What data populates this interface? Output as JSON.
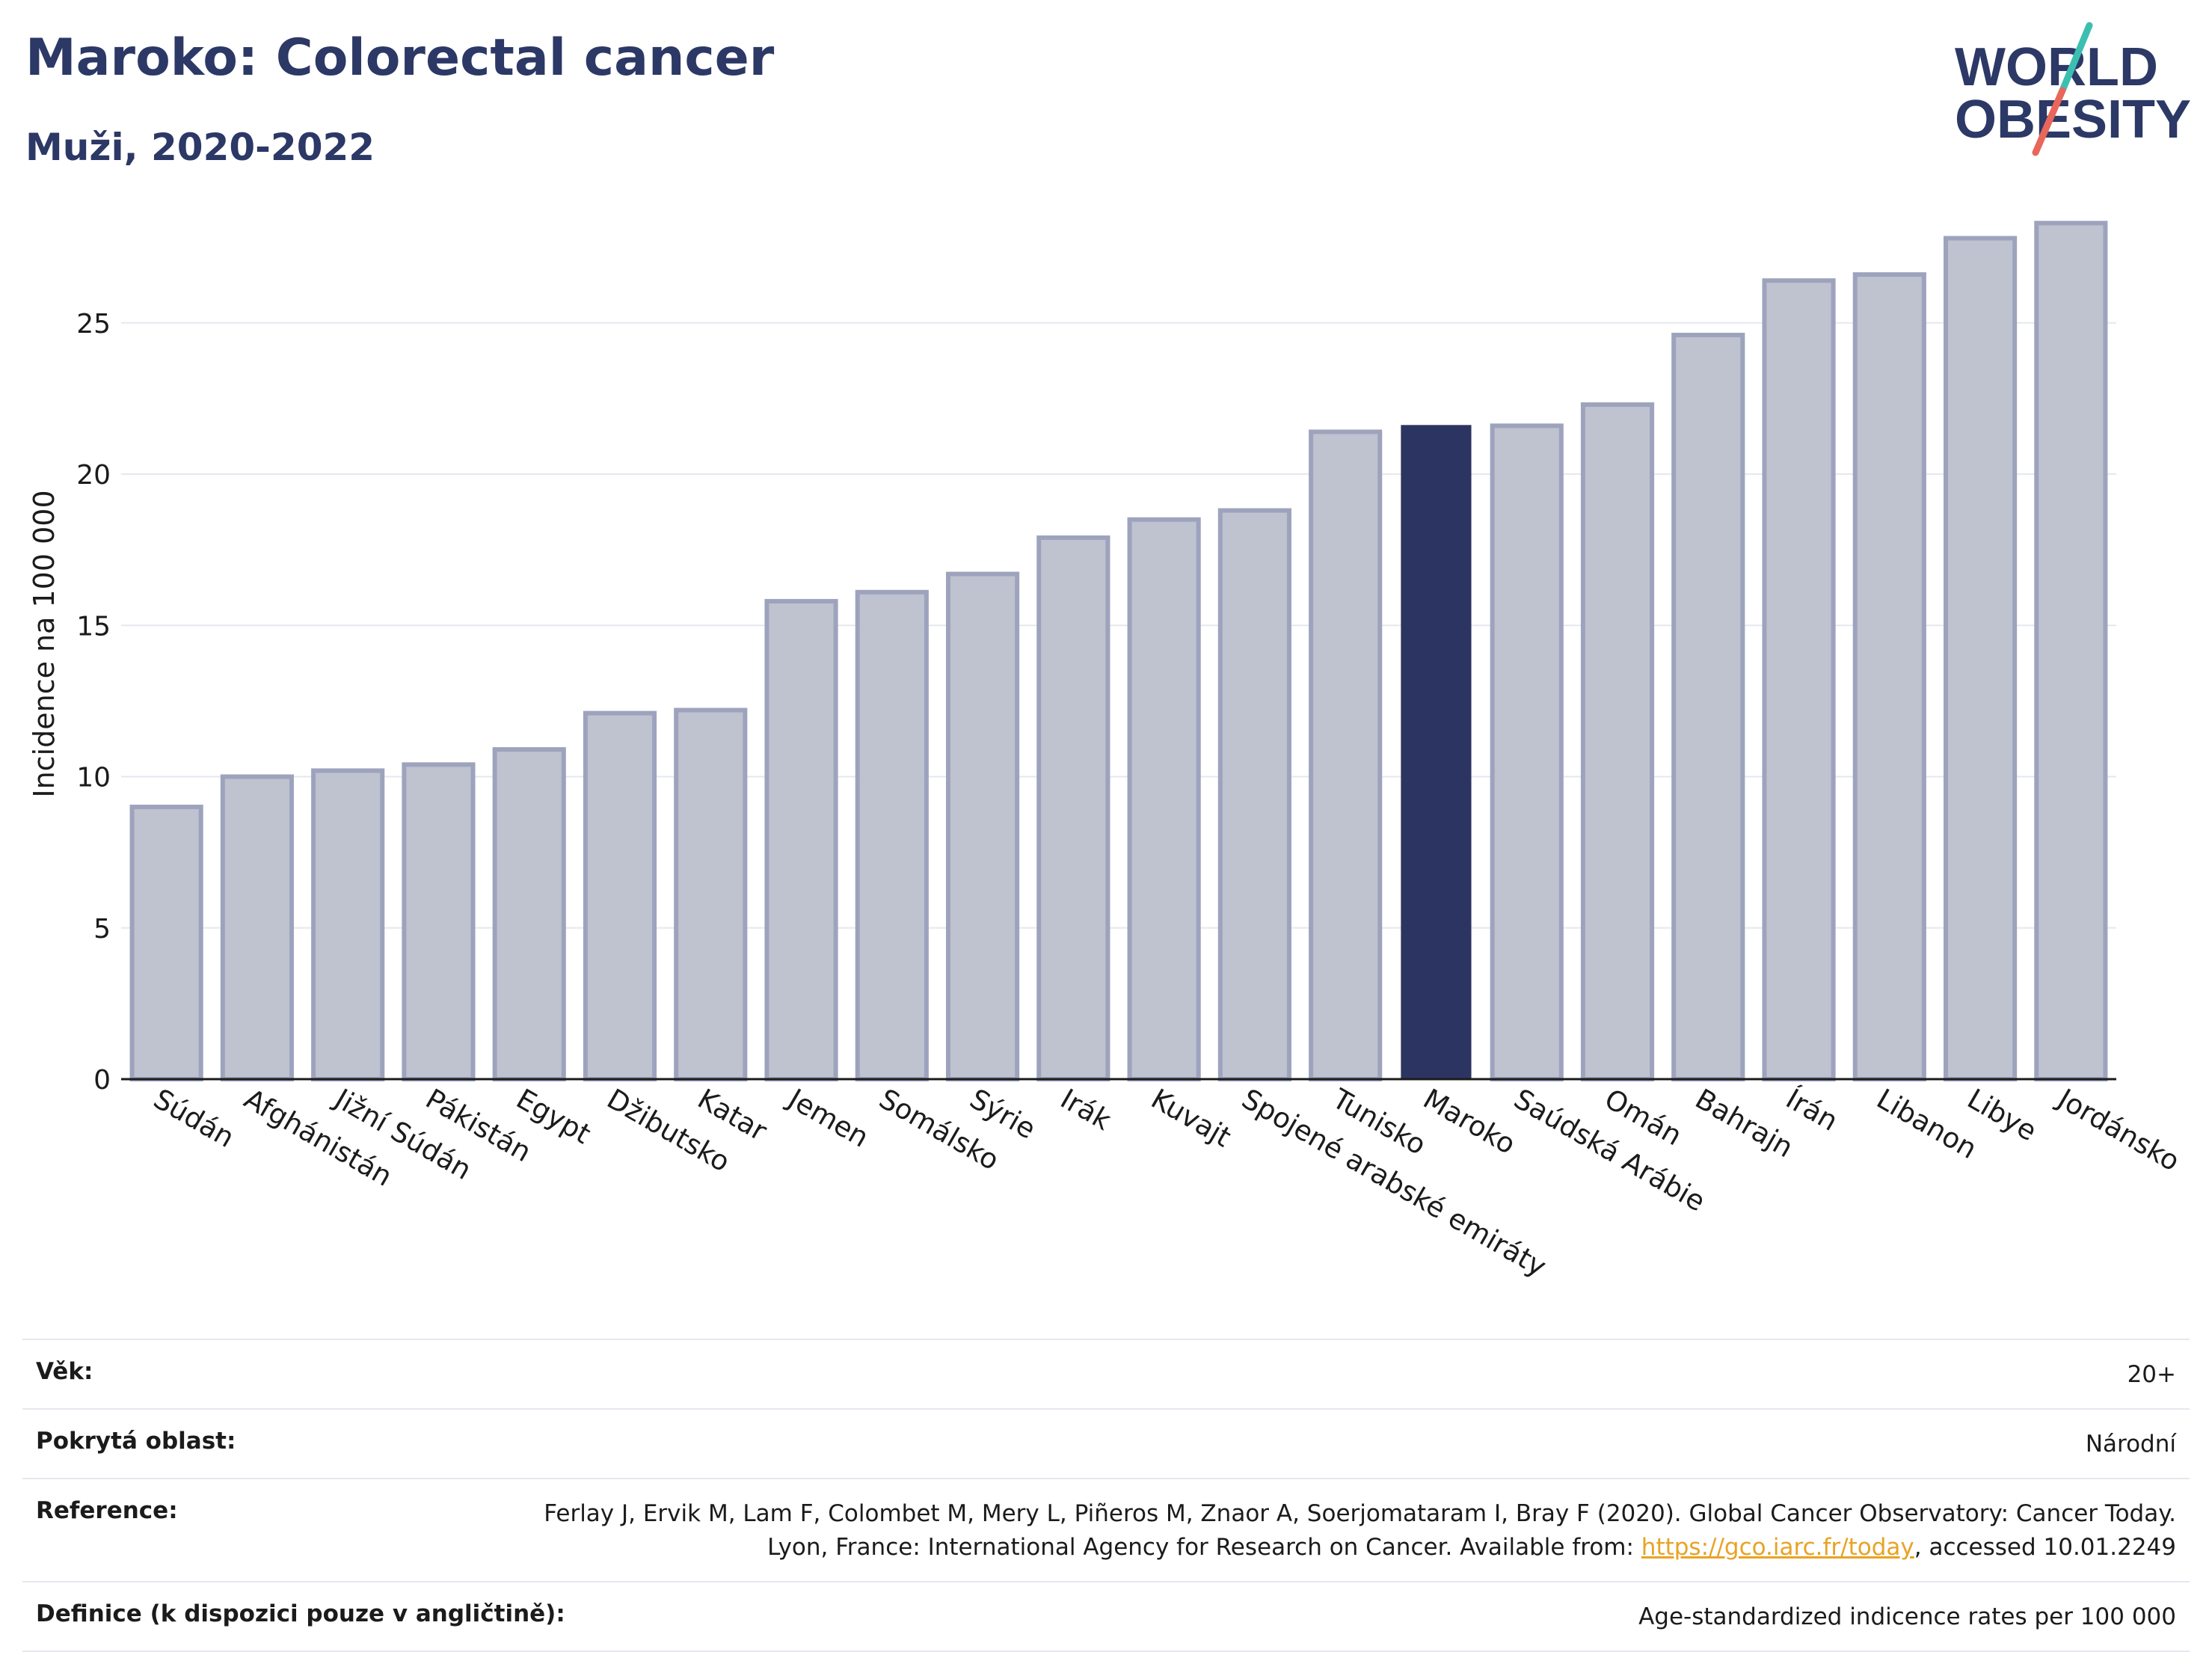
{
  "header": {
    "title": "Maroko: Colorectal cancer",
    "subtitle": "Muži, 2020-2022"
  },
  "logo": {
    "line1": "WORLD",
    "line2": "OBESITY",
    "accent_teal": "#3cbfb0",
    "accent_coral": "#e8665a",
    "text_color": "#2c3865"
  },
  "chart_data": {
    "type": "bar",
    "title": "",
    "xlabel": "",
    "ylabel": "Incidence na 100 000",
    "ylim": [
      0,
      29
    ],
    "yticks": [
      0,
      5,
      10,
      15,
      20,
      25
    ],
    "grid": true,
    "highlight": "Maroko",
    "highlight_color": "#2c3461",
    "bar_color": "#bfc2cf",
    "bar_edge_color": "#9ea3bd",
    "categories": [
      "Súdán",
      "Afghánistán",
      "Jižní Súdán",
      "Pákistán",
      "Egypt",
      "Džibutsko",
      "Katar",
      "Jemen",
      "Somálsko",
      "Sýrie",
      "Irák",
      "Kuvajt",
      "Spojené arabské emiráty",
      "Tunisko",
      "Maroko",
      "Saúdská Arábie",
      "Omán",
      "Bahrajn",
      "Írán",
      "Libanon",
      "Libye",
      "Jordánsko"
    ],
    "values": [
      9.0,
      10.0,
      10.2,
      10.4,
      10.9,
      12.1,
      12.2,
      15.8,
      16.1,
      16.7,
      17.9,
      18.5,
      18.8,
      21.4,
      21.6,
      21.6,
      22.3,
      24.6,
      26.4,
      26.6,
      27.8,
      28.3
    ]
  },
  "meta": {
    "age_label": "Věk:",
    "age_value": "20+",
    "area_label": "Pokrytá oblast:",
    "area_value": "Národní",
    "reference_label": "Reference:",
    "reference_text_1": "Ferlay J, Ervik M, Lam F, Colombet M, Mery L, Piñeros M, Znaor A, Soerjomataram I, Bray F (2020). Global Cancer Observatory: Cancer Today. Lyon, France: International Agency for Research on Cancer. Available from: ",
    "reference_link": "https://gco.iarc.fr/today",
    "reference_text_2": ", accessed 10.01.2249",
    "definition_label": "Definice (k dispozici pouze v angličtině):",
    "definition_value": "Age-standardized indicence rates per 100 000"
  }
}
